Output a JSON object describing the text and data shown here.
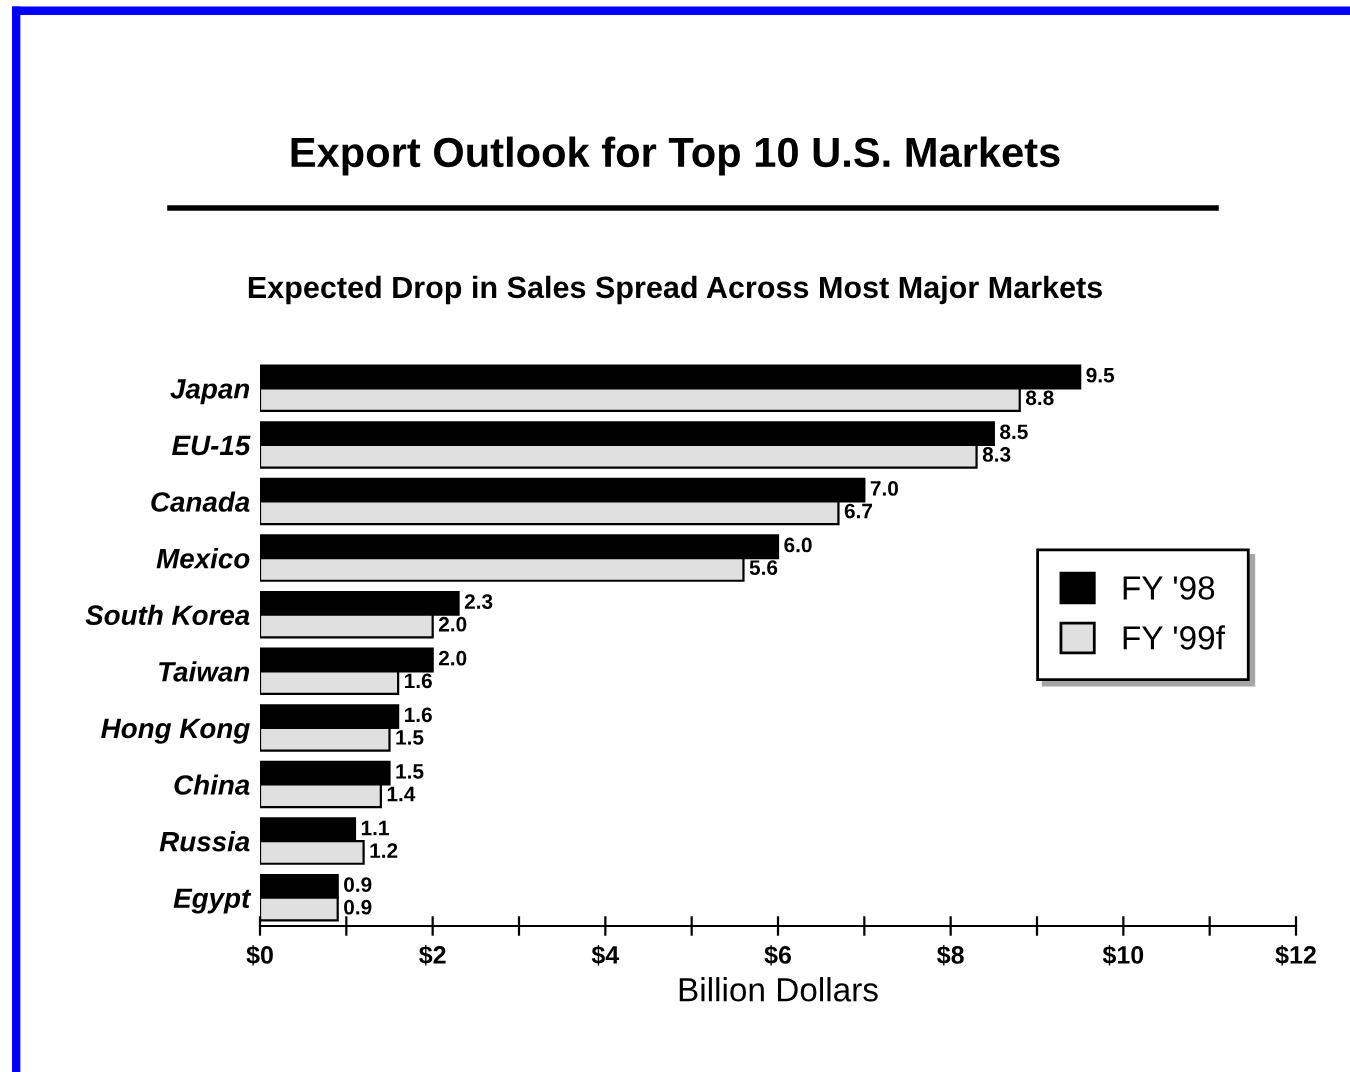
{
  "chart_data": {
    "type": "bar",
    "orientation": "horizontal",
    "title": "Export Outlook for Top 10 U.S. Markets",
    "subtitle": "Expected Drop in Sales Spread Across Most Major Markets",
    "xlabel": "Billion Dollars",
    "categories": [
      "Japan",
      "EU-15",
      "Canada",
      "Mexico",
      "South Korea",
      "Taiwan",
      "Hong Kong",
      "China",
      "Russia",
      "Egypt"
    ],
    "series": [
      {
        "name": "FY '98",
        "color": "#000000",
        "values": [
          9.5,
          8.5,
          7.0,
          6.0,
          2.3,
          2.0,
          1.6,
          1.5,
          1.1,
          0.9
        ],
        "value_labels": [
          "9.5",
          "8.5",
          "7.0",
          "6.0",
          "2.3",
          "2.0",
          "1.6",
          "1.5",
          "1.1",
          "0.9"
        ]
      },
      {
        "name": "FY '99f",
        "color": "#e0e0e0",
        "values": [
          8.8,
          8.3,
          6.7,
          5.6,
          2.0,
          1.6,
          1.5,
          1.4,
          1.2,
          0.9
        ],
        "value_labels": [
          "8.8",
          "8.3",
          "6.7",
          "5.6",
          "2.0",
          "1.6",
          "1.5",
          "1.4",
          "1.2",
          "0.9"
        ]
      }
    ],
    "xlim": [
      0,
      12
    ],
    "xticks": [
      {
        "value": 0,
        "label": "$0"
      },
      {
        "value": 1,
        "label": null
      },
      {
        "value": 2,
        "label": "$2"
      },
      {
        "value": 3,
        "label": null
      },
      {
        "value": 4,
        "label": "$4"
      },
      {
        "value": 5,
        "label": null
      },
      {
        "value": 6,
        "label": "$6"
      },
      {
        "value": 7,
        "label": null
      },
      {
        "value": 8,
        "label": "$8"
      },
      {
        "value": 9,
        "label": null
      },
      {
        "value": 10,
        "label": "$10"
      },
      {
        "value": 11,
        "label": null
      },
      {
        "value": 12,
        "label": "$12"
      }
    ],
    "legend": "right",
    "grid": false
  }
}
